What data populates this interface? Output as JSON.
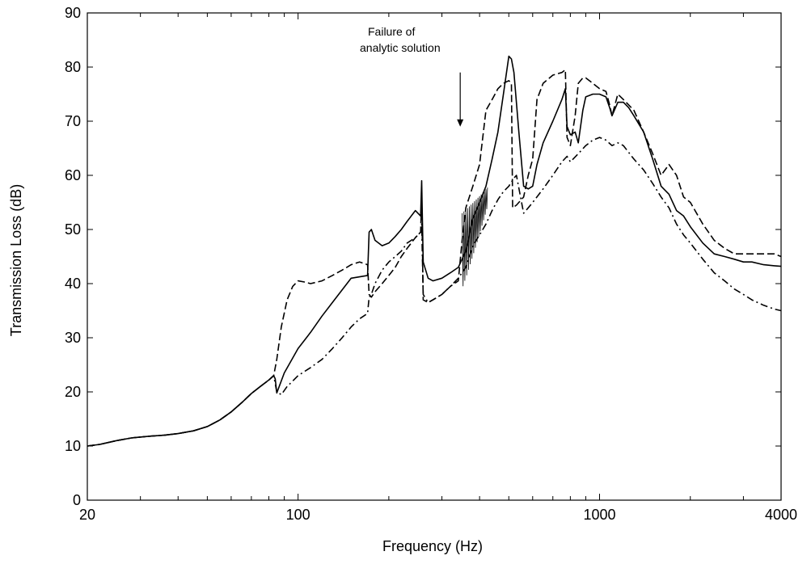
{
  "chart_data": {
    "type": "line",
    "title": "",
    "xlabel": "Frequency (Hz)",
    "ylabel": "Transmission Loss (dB)",
    "x_scale": "log",
    "xlim": [
      20,
      4000
    ],
    "ylim": [
      0,
      90
    ],
    "x_tick_labels": [
      "20",
      "100",
      "1000",
      "4000"
    ],
    "x_tick_values": [
      20,
      100,
      1000,
      4000
    ],
    "y_tick_values": [
      0,
      10,
      20,
      30,
      40,
      50,
      60,
      70,
      80,
      90
    ],
    "y_tick_labels": [
      "0",
      "10",
      "20",
      "30",
      "40",
      "50",
      "60",
      "70",
      "80",
      "90"
    ],
    "grid": false,
    "legend": "none",
    "annotation": {
      "lines": [
        "Failure of",
        "analytic solution"
      ],
      "arrow_x": 345,
      "arrow_y_from": 79,
      "arrow_y_to": 69
    },
    "series": [
      {
        "style": "solid",
        "x": [
          20,
          22,
          25,
          28,
          32,
          36,
          40,
          45,
          50,
          55,
          60,
          65,
          70,
          75,
          80,
          83,
          84,
          85,
          90,
          100,
          110,
          120,
          130,
          150,
          170,
          172,
          175,
          180,
          190,
          200,
          210,
          220,
          230,
          245,
          255,
          257,
          260,
          270,
          280,
          300,
          320,
          340,
          360,
          380,
          400,
          420,
          440,
          460,
          480,
          500,
          510,
          520,
          540,
          560,
          580,
          600,
          620,
          650,
          700,
          750,
          770,
          780,
          800,
          830,
          850,
          880,
          900,
          950,
          1000,
          1050,
          1080,
          1100,
          1150,
          1200,
          1250,
          1300,
          1400,
          1500,
          1600,
          1700,
          1800,
          1900,
          2000,
          2200,
          2400,
          2600,
          2800,
          3000,
          3200,
          3500,
          3800,
          4000
        ],
        "y": [
          10,
          10.3,
          11,
          11.5,
          11.8,
          12,
          12.3,
          12.8,
          13.6,
          14.8,
          16.3,
          18.0,
          19.7,
          21.0,
          22.2,
          23.0,
          22.4,
          19.8,
          23.5,
          28,
          31,
          34,
          36.5,
          41.0,
          41.5,
          49.5,
          50.0,
          48.0,
          47.0,
          47.5,
          48.7,
          50.0,
          51.5,
          53.5,
          52.5,
          59.0,
          44.0,
          41.0,
          40.5,
          41.0,
          42.0,
          43.0,
          46.0,
          52.0,
          55.0,
          58.0,
          63.0,
          68.0,
          75.0,
          82.0,
          81.5,
          79.0,
          68.0,
          58.0,
          57.5,
          58.0,
          62.0,
          66.0,
          70.0,
          74.0,
          76.0,
          69.0,
          67.5,
          68.0,
          66.0,
          72.0,
          74.5,
          75.0,
          75.0,
          74.5,
          72.5,
          71.0,
          73.5,
          73.5,
          72.5,
          71.0,
          68.0,
          63.0,
          58.0,
          56.5,
          53.5,
          52.5,
          50.5,
          47.5,
          45.5,
          45.0,
          44.5,
          44.0,
          44.0,
          43.5,
          43.3,
          43.2
        ]
      },
      {
        "style": "dashed",
        "x": [
          20,
          22,
          25,
          28,
          32,
          36,
          40,
          45,
          50,
          55,
          60,
          65,
          70,
          75,
          80,
          83,
          85,
          88,
          92,
          96,
          100,
          105,
          110,
          120,
          130,
          140,
          150,
          160,
          170,
          172,
          175,
          180,
          190,
          200,
          210,
          220,
          230,
          245,
          255,
          257,
          260,
          270,
          280,
          300,
          320,
          340,
          350,
          360,
          380,
          400,
          420,
          440,
          460,
          480,
          500,
          510,
          515,
          530,
          560,
          580,
          600,
          620,
          650,
          700,
          750,
          770,
          780,
          800,
          830,
          850,
          880,
          900,
          950,
          1000,
          1050,
          1080,
          1100,
          1150,
          1200,
          1250,
          1300,
          1400,
          1500,
          1600,
          1700,
          1800,
          1900,
          2000,
          2200,
          2400,
          2600,
          2800,
          3000,
          3200,
          3500,
          3800,
          4000
        ],
        "y": [
          10,
          10.3,
          11,
          11.5,
          11.8,
          12,
          12.3,
          12.8,
          13.6,
          14.8,
          16.3,
          18.0,
          19.7,
          21.0,
          22.2,
          23.0,
          26.0,
          32.0,
          37.0,
          39.5,
          40.5,
          40.3,
          40.0,
          40.5,
          41.5,
          42.5,
          43.5,
          44.0,
          43.5,
          38.0,
          37.5,
          38.5,
          40.0,
          41.5,
          43.0,
          45.0,
          46.5,
          48.5,
          49.5,
          56.0,
          37.0,
          36.5,
          37.0,
          38.0,
          39.5,
          40.5,
          48.0,
          54.0,
          58.0,
          62.0,
          72.0,
          74.0,
          76.0,
          77.0,
          77.5,
          77.0,
          54.0,
          54.5,
          56.0,
          60.0,
          63.0,
          74.0,
          77.0,
          78.5,
          79.0,
          79.5,
          67.0,
          65.5,
          71.0,
          77.0,
          78.0,
          78.0,
          77.0,
          76.0,
          75.5,
          73.0,
          71.0,
          75.0,
          74.0,
          73.0,
          72.0,
          68.0,
          64.0,
          60.0,
          62.0,
          60.0,
          56.0,
          55.0,
          51.0,
          48.0,
          46.5,
          45.5,
          45.5,
          45.5,
          45.5,
          45.5,
          45.0
        ]
      },
      {
        "style": "dashdot",
        "x": [
          20,
          22,
          25,
          28,
          32,
          36,
          40,
          45,
          50,
          55,
          60,
          65,
          70,
          75,
          80,
          83,
          85,
          88,
          92,
          96,
          100,
          110,
          120,
          130,
          140,
          150,
          160,
          170,
          172,
          175,
          180,
          190,
          200,
          210,
          220,
          230,
          245,
          255,
          257,
          260,
          270,
          280,
          300,
          320,
          340,
          360,
          380,
          400,
          420,
          440,
          460,
          480,
          500,
          520,
          530,
          560,
          580,
          600,
          650,
          700,
          750,
          780,
          800,
          850,
          900,
          950,
          1000,
          1050,
          1100,
          1150,
          1200,
          1300,
          1400,
          1500,
          1600,
          1700,
          1800,
          1900,
          2000,
          2200,
          2400,
          2600,
          2800,
          3000,
          3200,
          3500,
          3800,
          4000
        ],
        "y": [
          10,
          10.3,
          11,
          11.5,
          11.8,
          12,
          12.3,
          12.8,
          13.6,
          14.8,
          16.3,
          18.0,
          19.7,
          21.0,
          22.2,
          23.0,
          20.0,
          19.5,
          21.0,
          22.0,
          23.0,
          24.5,
          26.0,
          28.0,
          30.0,
          32.0,
          33.5,
          34.5,
          37.5,
          38.0,
          40.0,
          42.5,
          44.0,
          45.0,
          46.0,
          47.5,
          48.5,
          49.5,
          51.0,
          38.0,
          36.5,
          37.0,
          38.0,
          39.5,
          41.0,
          43.0,
          47.0,
          49.0,
          51.0,
          53.5,
          55.5,
          57.0,
          58.0,
          59.5,
          60.0,
          53.0,
          54.0,
          55.0,
          57.5,
          60.0,
          62.5,
          63.5,
          62.5,
          64.0,
          65.5,
          66.5,
          67.0,
          66.5,
          65.5,
          66.0,
          65.5,
          63.0,
          61.0,
          58.5,
          56.0,
          54.0,
          51.0,
          49.0,
          47.5,
          44.5,
          42.0,
          40.5,
          39.0,
          38.0,
          37.0,
          36.0,
          35.3,
          35.0
        ]
      }
    ]
  }
}
